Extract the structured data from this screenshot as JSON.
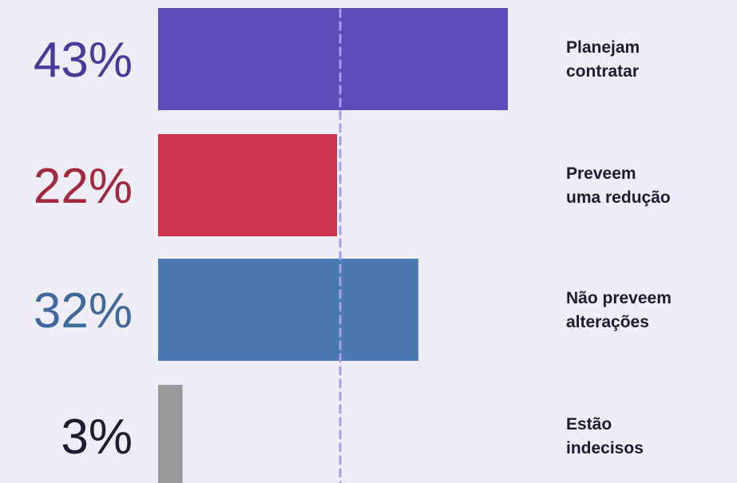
{
  "chart_data": {
    "type": "bar",
    "orientation": "horizontal",
    "categories": [
      "Planejam contratar",
      "Preveem uma redução",
      "Não preveem alterações",
      "Estão indecisos"
    ],
    "category_lines": [
      [
        "Planejam",
        "contratar"
      ],
      [
        "Preveem",
        "uma redução"
      ],
      [
        "Não preveem",
        "alterações"
      ],
      [
        "Estão",
        "indecisos"
      ]
    ],
    "values": [
      43,
      22,
      32,
      3
    ],
    "value_labels": [
      "43%",
      "22%",
      "32%",
      "3%"
    ],
    "colors": [
      "#5e4cb8",
      "#cd334b",
      "#4a7ab0",
      "#9a9a9c"
    ],
    "label_colors": [
      "#4b3a9e",
      "#a32a3e",
      "#3f6a9e",
      "#1f1b33"
    ],
    "reference_line": {
      "value": 22,
      "style": "dashed",
      "color": "#a79cf2"
    },
    "xlim": [
      0,
      43
    ],
    "grid": false,
    "title": "",
    "xlabel": "",
    "ylabel": ""
  }
}
